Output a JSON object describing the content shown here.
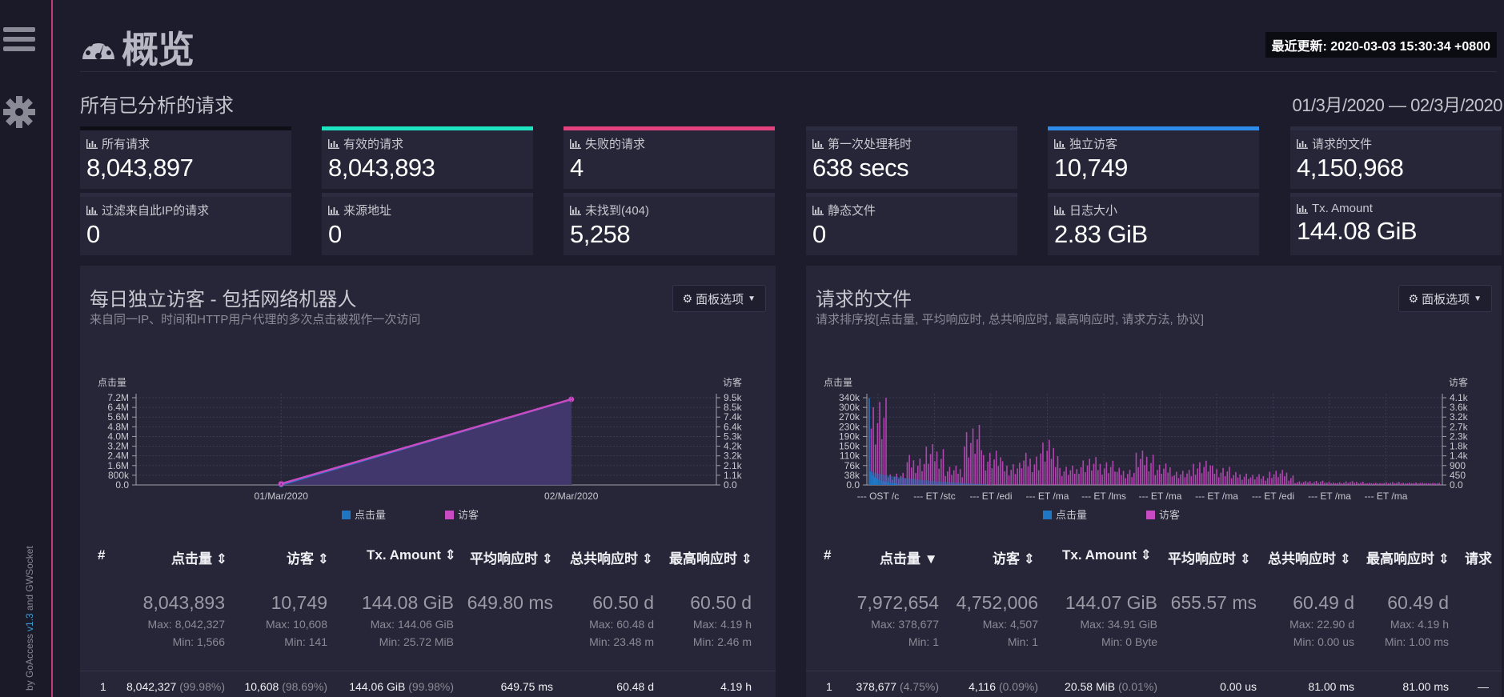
{
  "header": {
    "title": "概览",
    "last_updated": "最近更新: 2020-03-03 15:30:34 +0800"
  },
  "section": {
    "title": "所有已分析的请求",
    "date_range": "01/3月/2020 — 02/3月/2020"
  },
  "sidebar": {
    "credit_prefix": "by GoAccess ",
    "version": "v1.3",
    "credit_suffix": " and GWSocket"
  },
  "colors": {
    "accent_teal": "#1ee3c0",
    "accent_pink": "#e3427e",
    "accent_blue": "#2e8bea",
    "hits_blue": "#1f77c4",
    "visitors_magenta": "#c94bc4"
  },
  "metrics": [
    {
      "label": "所有请求",
      "value": "8,043,897"
    },
    {
      "label": "有效的请求",
      "value": "8,043,893"
    },
    {
      "label": "失败的请求",
      "value": "4"
    },
    {
      "label": "第一次处理耗时",
      "value": "638 secs"
    },
    {
      "label": "独立访客",
      "value": "10,749"
    },
    {
      "label": "请求的文件",
      "value": "4,150,968"
    },
    {
      "label": "过滤来自此IP的请求",
      "value": "0"
    },
    {
      "label": "来源地址",
      "value": "0"
    },
    {
      "label": "未找到(404)",
      "value": "5,258"
    },
    {
      "label": "静态文件",
      "value": "0"
    },
    {
      "label": "日志大小",
      "value": "2.83 GiB"
    },
    {
      "label": "Tx. Amount",
      "value": "144.08 GiB"
    }
  ],
  "visitors_panel": {
    "title": "每日独立访客 - 包括网络机器人",
    "subtitle": "来自同一IP、时间和HTTP用户代理的多次点击被视作一次访问",
    "options_label": "面板选项",
    "table": {
      "headers": [
        "#",
        "点击量",
        "访客",
        "Tx. Amount",
        "平均响应时",
        "总共响应时",
        "最高响应时"
      ],
      "summary": {
        "hits": "8,043,893",
        "hits_max": "Max: 8,042,327",
        "hits_min": "Min: 1,566",
        "visitors": "10,749",
        "visitors_max": "Max: 10,608",
        "visitors_min": "Min: 141",
        "tx": "144.08 GiB",
        "tx_max": "Max: 144.06 GiB",
        "tx_min": "Min: 25.72 MiB",
        "avg": "649.80 ms",
        "total": "60.50 d",
        "total_max": "Max: 60.48 d",
        "total_min": "Min: 23.48 m",
        "max": "60.50 d",
        "max_max": "Max: 4.19 h",
        "max_min": "Min: 2.46 m"
      },
      "row1": {
        "num": "1",
        "hits": "8,042,327",
        "hits_pct": "(99.98%)",
        "visitors": "10,608",
        "visitors_pct": "(98.69%)",
        "tx": "144.06 GiB",
        "tx_pct": "(99.98%)",
        "avg": "649.75 ms",
        "total": "60.48 d",
        "max": "4.19 h"
      }
    }
  },
  "files_panel": {
    "title": "请求的文件",
    "subtitle": "请求排序按[点击量, 平均响应时, 总共响应时, 最高响应时, 请求方法, 协议]",
    "options_label": "面板选项",
    "table": {
      "headers": [
        "#",
        "点击量",
        "访客",
        "Tx. Amount",
        "平均响应时",
        "总共响应时",
        "最高响应时",
        "请求"
      ],
      "summary": {
        "hits": "7,972,654",
        "hits_max": "Max: 378,677",
        "hits_min": "Min: 1",
        "visitors": "4,752,006",
        "visitors_max": "Max: 4,507",
        "visitors_min": "Min: 1",
        "tx": "144.07 GiB",
        "tx_max": "Max: 34.91 GiB",
        "tx_min": "Min: 0 Byte",
        "avg": "655.57 ms",
        "total": "60.49 d",
        "total_max": "Max: 22.90 d",
        "total_min": "Min: 0.00 us",
        "max": "60.49 d",
        "max_max": "Max: 4.19 h",
        "max_min": "Min: 1.00 ms"
      },
      "row1": {
        "num": "1",
        "hits": "378,677",
        "hits_pct": "(4.75%)",
        "visitors": "4,116",
        "visitors_pct": "(0.09%)",
        "tx": "20.58 MiB",
        "tx_pct": "(0.01%)",
        "avg": "0.00 us",
        "total": "81.00 ms",
        "max": "81.00 ms",
        "req": "—"
      }
    }
  },
  "chart_data": [
    {
      "type": "line",
      "title": "每日独立访客 - 包括网络机器人",
      "ylabel": "点击量",
      "y2label": "访客",
      "categories": [
        "01/Mar/2020",
        "02/Mar/2020"
      ],
      "y_ticks": [
        "0.0",
        "800k",
        "1.6M",
        "2.4M",
        "3.2M",
        "4.0M",
        "4.8M",
        "5.6M",
        "6.4M",
        "7.2M"
      ],
      "y2_ticks": [
        "0.0",
        "1.1k",
        "2.1k",
        "3.2k",
        "4.2k",
        "5.3k",
        "6.4k",
        "7.4k",
        "8.5k",
        "9.5k"
      ],
      "ylim": [
        0,
        8200000
      ],
      "y2lim": [
        0,
        10800
      ],
      "series": [
        {
          "name": "点击量",
          "values": [
            1566,
            8042327
          ]
        },
        {
          "name": "访客",
          "values": [
            141,
            10608
          ]
        }
      ]
    },
    {
      "type": "bar",
      "title": "请求的文件",
      "ylabel": "点击量",
      "y2label": "访客",
      "x_tick_labels": [
        "--- OST /c",
        "--- ET /stc",
        "--- ET /edi",
        "--- ET /ma",
        "--- ET /lms",
        "--- ET /ma",
        "--- ET /ma",
        "--- ET /edi",
        "--- ET /ma",
        "--- ET /ma"
      ],
      "y_ticks": [
        "0.0",
        "38k",
        "76k",
        "110k",
        "150k",
        "190k",
        "230k",
        "270k",
        "300k",
        "340k"
      ],
      "y2_ticks": [
        "0.0",
        "450",
        "900",
        "1.4k",
        "1.8k",
        "2.3k",
        "2.7k",
        "3.2k",
        "3.6k",
        "4.1k"
      ],
      "ylim": [
        0,
        380000
      ],
      "y2lim": [
        0,
        4600
      ],
      "series": [
        {
          "name": "点击量",
          "note": "first entry max 378,677 then decays to small values"
        },
        {
          "name": "访客",
          "note": "max 4,116 with many bars 500–2,800"
        }
      ],
      "hits_sample": [
        378677,
        60000,
        42000,
        35000,
        30000,
        26000,
        22000,
        19000,
        17000,
        15000,
        13000,
        11000,
        9000,
        8000,
        7000,
        6000,
        5000,
        4000
      ],
      "visitors_profile": [
        4116,
        600,
        1400,
        1900,
        900,
        2800,
        1700,
        1100,
        1500,
        2100,
        900,
        1300,
        1200,
        800,
        1600,
        1000,
        700,
        1200,
        900,
        600,
        500,
        700,
        500,
        600,
        400,
        500,
        300,
        400,
        350,
        300
      ]
    }
  ],
  "legend": {
    "hits": "点击量",
    "visitors": "访客"
  }
}
